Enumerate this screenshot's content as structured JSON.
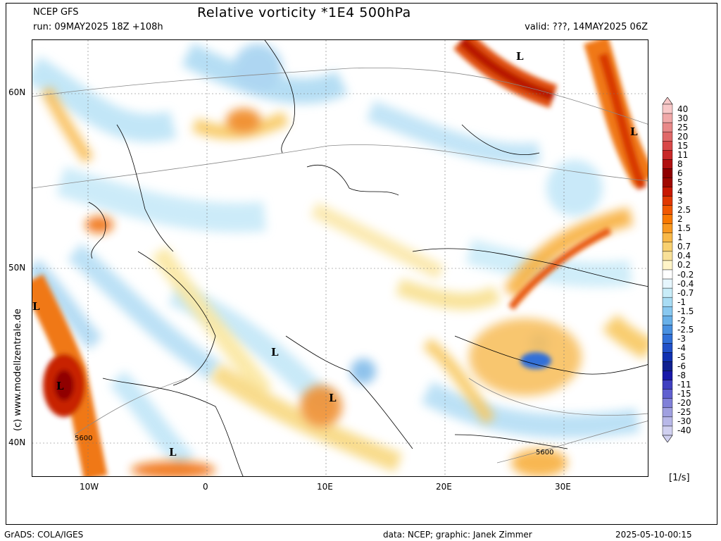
{
  "header": {
    "model": "NCEP GFS",
    "run": "run: 09MAY2025 18Z +108h",
    "title": "Relative vorticity *1E4 500hPa",
    "valid": "valid: ???, 14MAY2025 06Z"
  },
  "axes": {
    "lat_labels": [
      "60N",
      "50N",
      "40N"
    ],
    "lon_labels": [
      "10W",
      "0",
      "10E",
      "20E",
      "30E"
    ]
  },
  "map_labels": {
    "low_marker": "L",
    "contour_label": "5600"
  },
  "colorbar": {
    "levels": [
      "40",
      "30",
      "25",
      "20",
      "15",
      "11",
      "8",
      "6",
      "5",
      "4",
      "3",
      "2.5",
      "2",
      "1.5",
      "1",
      "0.7",
      "0.4",
      "0.2",
      "-0.2",
      "-0.4",
      "-0.7",
      "-1",
      "-1.5",
      "-2",
      "-2.5",
      "-3",
      "-4",
      "-5",
      "-6",
      "-8",
      "-11",
      "-15",
      "-20",
      "-25",
      "-30",
      "-40"
    ],
    "colors": [
      "#f8c8c8",
      "#f0a8a8",
      "#e88888",
      "#e06868",
      "#d84848",
      "#c82828",
      "#b01010",
      "#900000",
      "#a00800",
      "#c81800",
      "#e03800",
      "#f05800",
      "#f87800",
      "#f89820",
      "#f8b848",
      "#f8d070",
      "#f8e098",
      "#fff4c8",
      "#ffffff",
      "#e6f6fd",
      "#c8ecf8",
      "#a8dcf4",
      "#88c8f0",
      "#68b0e8",
      "#4890e0",
      "#3070d8",
      "#2050c8",
      "#1030b0",
      "#102090",
      "#1818a8",
      "#4040c0",
      "#6060d0",
      "#8080d8",
      "#a0a0e0",
      "#b8b8e8",
      "#d0d0f0"
    ],
    "unit": "[1/s]"
  },
  "footer": {
    "grads": "GrADS: COLA/IGES",
    "data_credit": "data: NCEP; graphic: Janek Zimmer",
    "timestamp": "2025-05-10-00:15"
  },
  "copyright": "(c) www.modellzentrale.de"
}
